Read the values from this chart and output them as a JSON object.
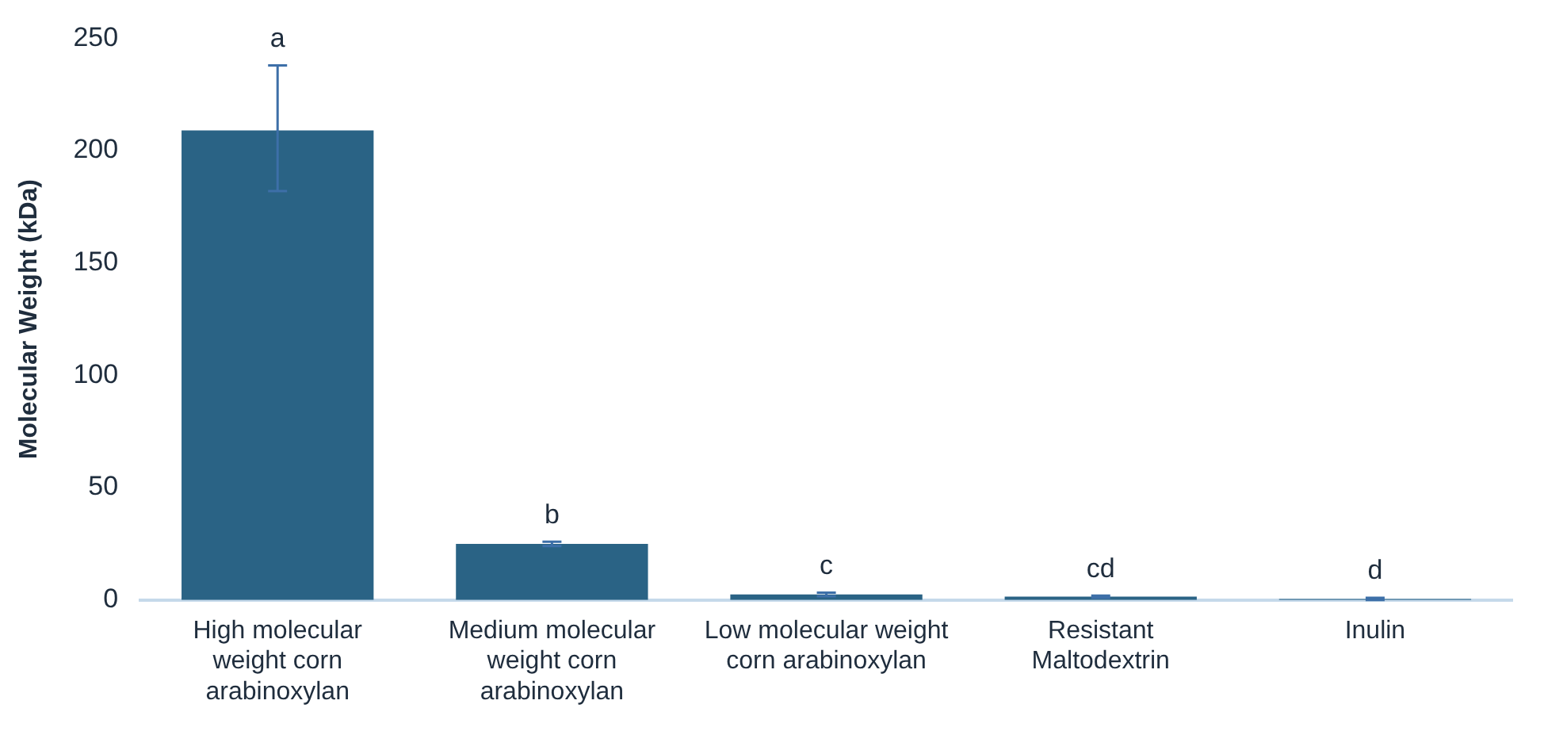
{
  "chart_data": {
    "type": "bar",
    "ylabel": "Molecular Weight (kDa)",
    "categories": [
      "High molecular weight corn arabinoxylan",
      "Medium molecular weight corn arabinoxylan",
      "Low molecular weight corn arabinoxylan",
      "Resistant Maltodextrin",
      "Inulin"
    ],
    "values": [
      209,
      25,
      2.5,
      1.5,
      0.5
    ],
    "errors": [
      [
        182,
        238
      ],
      1,
      0.8,
      0.5,
      0.5
    ],
    "color": "#2a6385",
    "ylim": [
      0,
      250
    ],
    "yticks": [
      0,
      50,
      100,
      150,
      200,
      250
    ],
    "grid": false,
    "annotations": [
      {
        "text": "a",
        "x": "High molecular weight corn arabinoxylan",
        "y": 238
      },
      {
        "text": "b",
        "x": "Medium molecular weight corn arabinoxylan",
        "y": 26
      },
      {
        "text": "c",
        "x": "Low molecular weight corn arabinoxylan",
        "y": 3.3
      },
      {
        "text": "cd",
        "x": "Resistant Maltodextrin",
        "y": 2
      },
      {
        "text": "d",
        "x": "Inulin",
        "y": 1
      }
    ]
  }
}
